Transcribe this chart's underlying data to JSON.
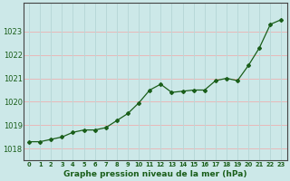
{
  "x": [
    0,
    1,
    2,
    3,
    4,
    5,
    6,
    7,
    8,
    9,
    10,
    11,
    12,
    13,
    14,
    15,
    16,
    17,
    18,
    19,
    20,
    21,
    22,
    23
  ],
  "y": [
    1018.3,
    1018.3,
    1018.4,
    1018.5,
    1018.7,
    1018.8,
    1018.8,
    1018.9,
    1019.2,
    1019.5,
    1019.95,
    1020.5,
    1020.75,
    1020.4,
    1020.45,
    1020.5,
    1020.5,
    1020.9,
    1021.0,
    1020.9,
    1021.55,
    1022.3,
    1023.3,
    1023.5
  ],
  "line_color": "#1a5e1a",
  "marker_color": "#1a5e1a",
  "bg_color": "#cce8e8",
  "grid_color_h": "#e8b8b8",
  "grid_color_v": "#b8d8d8",
  "axis_label_color": "#1a5e1a",
  "tick_label_color": "#1a5e1a",
  "xlabel": "Graphe pression niveau de la mer (hPa)",
  "ylim": [
    1017.5,
    1024.2
  ],
  "yticks": [
    1018,
    1019,
    1020,
    1021,
    1022,
    1023
  ],
  "xticks": [
    0,
    1,
    2,
    3,
    4,
    5,
    6,
    7,
    8,
    9,
    10,
    11,
    12,
    13,
    14,
    15,
    16,
    17,
    18,
    19,
    20,
    21,
    22,
    23
  ],
  "xlim": [
    -0.5,
    23.5
  ],
  "figsize": [
    3.2,
    2.0
  ],
  "dpi": 100
}
